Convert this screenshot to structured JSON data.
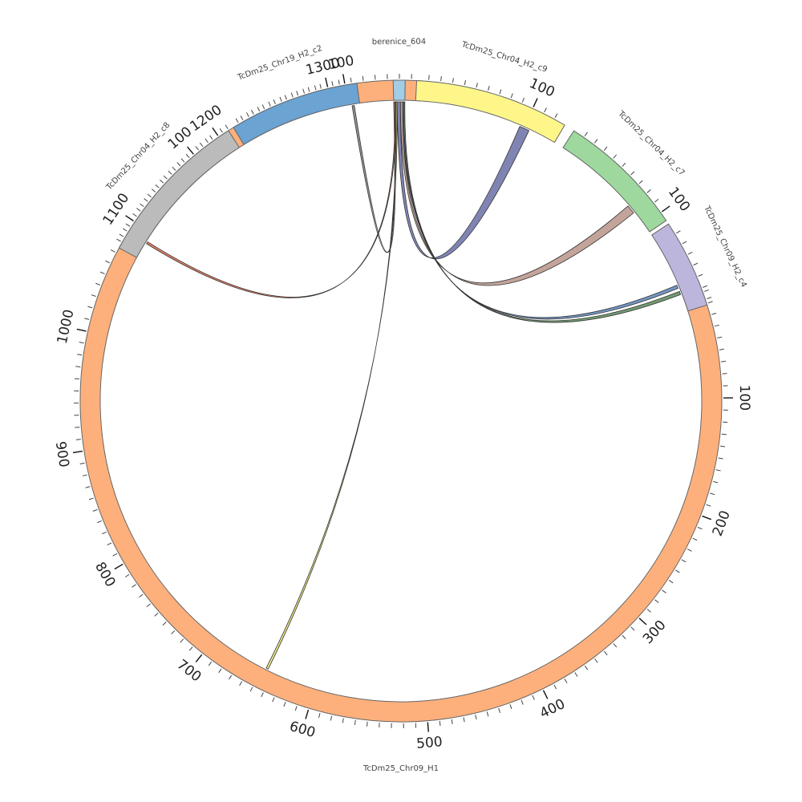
{
  "chart_data": {
    "type": "chord",
    "title": "",
    "units": "",
    "segments": [
      {
        "name": "TcDm25_Chr09_H1",
        "length": 1380,
        "color": "#fdb07c",
        "label_ticks": [
          100,
          200,
          300,
          400,
          500,
          600,
          700,
          800,
          900,
          1000,
          1100,
          1200,
          1300
        ]
      },
      {
        "name": "TcDm25_Chr04_H2_c8",
        "length": 135,
        "color": "#bbbbbb",
        "label_ticks": [
          100
        ]
      },
      {
        "name": "TcDm25_Chr19_H2_c2",
        "length": 110,
        "color": "#6ba3d3",
        "label_ticks": [
          100
        ]
      },
      {
        "name": "berenice_604",
        "length": 10,
        "color": "#a3cce6",
        "label_ticks": []
      },
      {
        "name": "TcDm25_Chr04_H2_c9",
        "length": 130,
        "color": "#fff68a",
        "label_ticks": [
          100
        ]
      },
      {
        "name": "TcDm25_Chr04_H2_c7",
        "length": 108,
        "color": "#9ed89e",
        "label_ticks": [
          100
        ]
      },
      {
        "name": "TcDm25_Chr09_H2_c4",
        "length": 75,
        "color": "#bcb5dc",
        "label_ticks": []
      }
    ],
    "links": [
      {
        "from": "berenice_604",
        "from_range": [
          0,
          1
        ],
        "to": "TcDm25_Chr19_H2_c2",
        "to_range": [
          103,
          105
        ],
        "color": "#808080"
      },
      {
        "from": "berenice_604",
        "from_range": [
          1,
          2
        ],
        "to": "TcDm25_Chr04_H2_c8",
        "to_range": [
          15,
          17
        ],
        "color": "#e06a4a"
      },
      {
        "from": "berenice_604",
        "from_range": [
          2,
          3
        ],
        "to": "TcDm25_Chr09_H1",
        "to_range": [
          645,
          647
        ],
        "color": "#e8e070"
      },
      {
        "from": "berenice_604",
        "from_range": [
          3,
          6
        ],
        "to": "TcDm25_Chr04_H2_c9",
        "to_range": [
          96,
          105
        ],
        "color": "#6a6fa6"
      },
      {
        "from": "berenice_604",
        "from_range": [
          6,
          8
        ],
        "to": "TcDm25_Chr04_H2_c7",
        "to_range": [
          78,
          86
        ],
        "color": "#b89488"
      },
      {
        "from": "berenice_604",
        "from_range": [
          8,
          9
        ],
        "to": "TcDm25_Chr09_H2_c4",
        "to_range": [
          50,
          53
        ],
        "color": "#5b82b8"
      },
      {
        "from": "berenice_604",
        "from_range": [
          9,
          10
        ],
        "to": "TcDm25_Chr09_H2_c4",
        "to_range": [
          56,
          59
        ],
        "color": "#5b8a5b"
      }
    ]
  }
}
